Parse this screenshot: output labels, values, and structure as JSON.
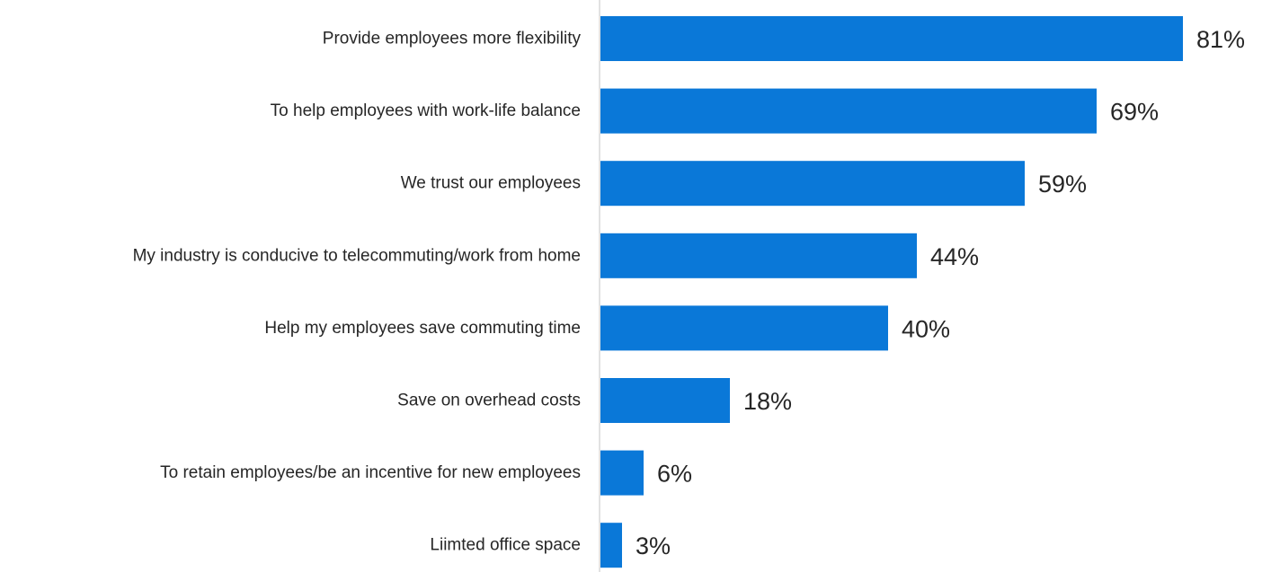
{
  "chart_data": {
    "type": "bar",
    "orientation": "horizontal",
    "categories": [
      "Provide employees more flexibility",
      "To help employees with work-life balance",
      "We trust our employees",
      "My industry is conducive to telecommuting/work from home",
      "Help my employees save commuting time",
      "Save on overhead costs",
      "To retain employees/be an incentive for new employees",
      "Liimted office space"
    ],
    "values": [
      81,
      69,
      59,
      44,
      40,
      18,
      6,
      3
    ],
    "value_labels": [
      "81%",
      "69%",
      "59%",
      "44%",
      "40%",
      "18%",
      "6%",
      "3%"
    ],
    "unit": "%",
    "xlim": [
      0,
      100
    ],
    "grid": false,
    "bar_color": "#0A78D8",
    "axis_color": "#D9D9D9",
    "text_color": "#262626"
  }
}
